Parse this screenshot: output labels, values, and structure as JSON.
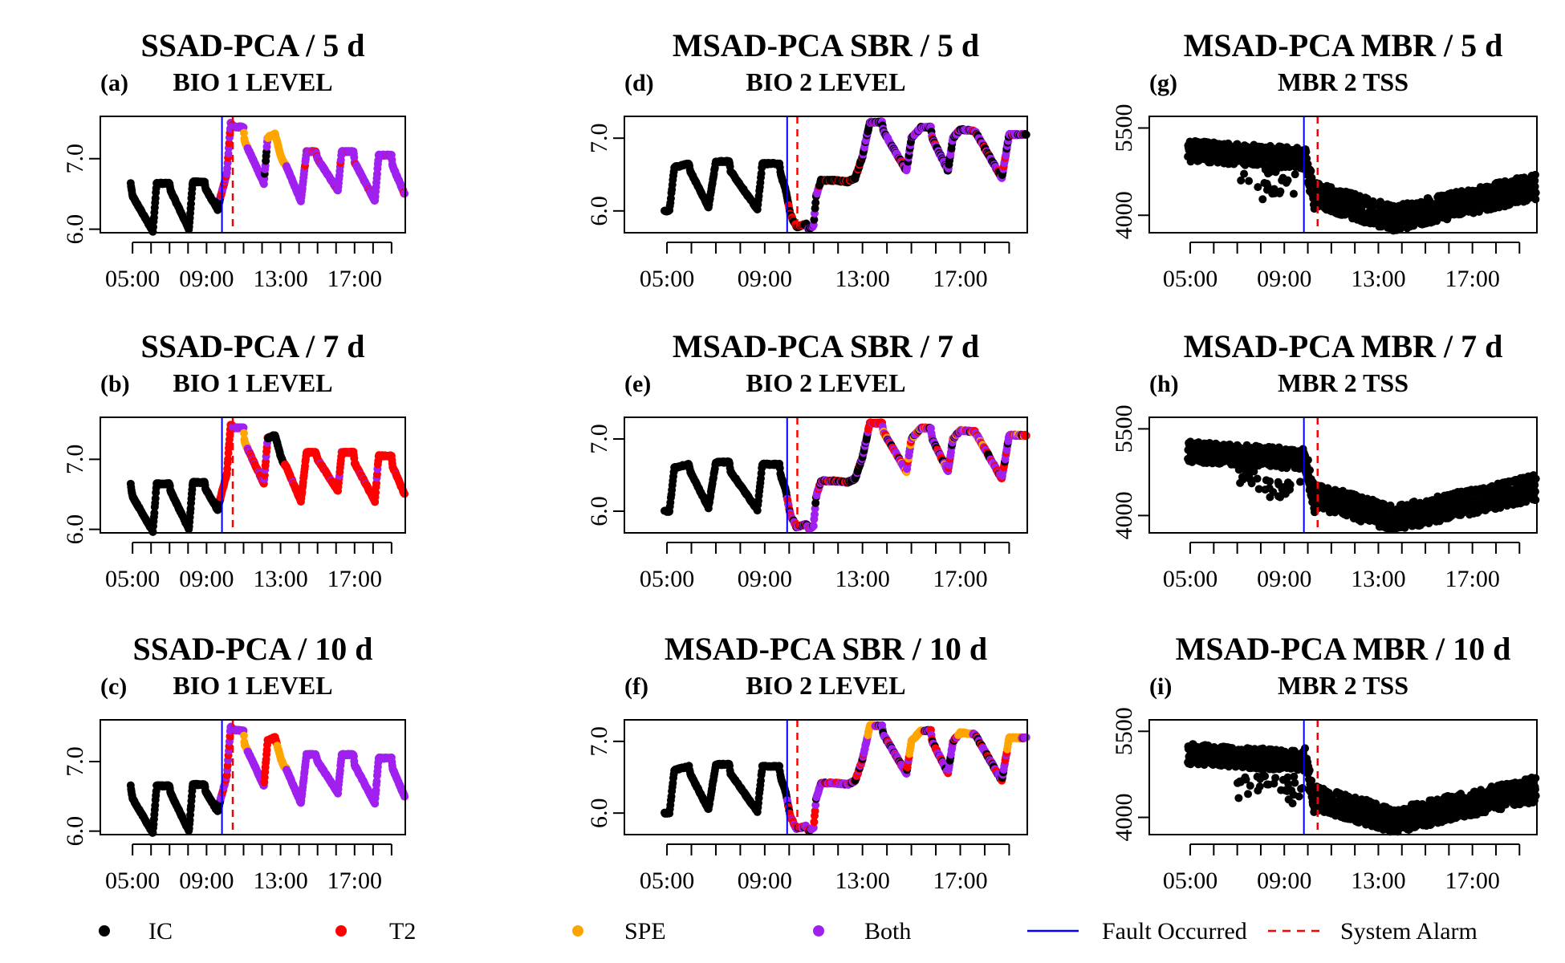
{
  "colors": {
    "IC": "#000000",
    "T2": "#ff0000",
    "SPE": "#ffa500",
    "Both": "#a020f0",
    "fault_line": "#0000ff",
    "alarm_line": "#ff0000"
  },
  "x_axis": {
    "domain_hours": [
      4.0,
      19.0
    ],
    "ticks": [
      "05:00",
      "06:00",
      "07:00",
      "08:00",
      "09:00",
      "10:00",
      "11:00",
      "12:00",
      "13:00",
      "14:00",
      "15:00",
      "16:00",
      "17:00",
      "18:00",
      "19:00"
    ],
    "tick_labels": [
      "05:00",
      "09:00",
      "13:00",
      "17:00"
    ]
  },
  "legend": {
    "items": [
      {
        "key": "IC",
        "label": "IC",
        "type": "point"
      },
      {
        "key": "T2",
        "label": "T2",
        "type": "point"
      },
      {
        "key": "SPE",
        "label": "SPE",
        "type": "point"
      },
      {
        "key": "Both",
        "label": "Both",
        "type": "point"
      },
      {
        "key": "fault_line",
        "label": "Fault Occurred",
        "type": "solid"
      },
      {
        "key": "alarm_line",
        "label": "System Alarm",
        "type": "dashed"
      }
    ]
  },
  "chart_data": [
    {
      "id": "a",
      "type": "scatter",
      "title": "SSAD-PCA / 5 d",
      "letter": "(a)",
      "variable": "BIO 1 LEVEL",
      "ylim": [
        5.95,
        7.6
      ],
      "yticks": [
        "6.0",
        "7.0"
      ],
      "fault_time": "09:50",
      "alarm_time": "10:25",
      "profile": "bio1",
      "pattern": "a"
    },
    {
      "id": "b",
      "type": "scatter",
      "title": "SSAD-PCA / 7 d",
      "letter": "(b)",
      "variable": "BIO 1 LEVEL",
      "ylim": [
        5.95,
        7.6
      ],
      "yticks": [
        "6.0",
        "7.0"
      ],
      "fault_time": "09:50",
      "alarm_time": "10:25",
      "profile": "bio1",
      "pattern": "b"
    },
    {
      "id": "c",
      "type": "scatter",
      "title": "SSAD-PCA / 10 d",
      "letter": "(c)",
      "variable": "BIO 1 LEVEL",
      "ylim": [
        5.95,
        7.6
      ],
      "yticks": [
        "6.0",
        "7.0"
      ],
      "fault_time": "09:50",
      "alarm_time": "10:25",
      "profile": "bio1",
      "pattern": "c"
    },
    {
      "id": "d",
      "type": "scatter",
      "title": "MSAD-PCA SBR / 5 d",
      "letter": "(d)",
      "variable": "BIO 2 LEVEL",
      "ylim": [
        5.7,
        7.3
      ],
      "yticks": [
        "6.0",
        "7.0"
      ],
      "fault_time": "09:55",
      "alarm_time": "10:20",
      "profile": "bio2",
      "pattern": "d"
    },
    {
      "id": "e",
      "type": "scatter",
      "title": "MSAD-PCA SBR / 7 d",
      "letter": "(e)",
      "variable": "BIO 2 LEVEL",
      "ylim": [
        5.7,
        7.3
      ],
      "yticks": [
        "6.0",
        "7.0"
      ],
      "fault_time": "09:55",
      "alarm_time": "10:20",
      "profile": "bio2",
      "pattern": "e"
    },
    {
      "id": "f",
      "type": "scatter",
      "title": "MSAD-PCA SBR / 10 d",
      "letter": "(f)",
      "variable": "BIO 2 LEVEL",
      "ylim": [
        5.7,
        7.3
      ],
      "yticks": [
        "6.0",
        "7.0"
      ],
      "fault_time": "09:55",
      "alarm_time": "10:20",
      "profile": "bio2",
      "pattern": "f"
    },
    {
      "id": "g",
      "type": "scatter",
      "title": "MSAD-PCA MBR / 5 d",
      "letter": "(g)",
      "variable": "MBR 2 TSS",
      "ylim": [
        3700,
        5700
      ],
      "yticks": [
        "4000",
        "5500"
      ],
      "fault_time": "09:50",
      "alarm_time": "10:25",
      "profile": "tss",
      "pattern": "tss"
    },
    {
      "id": "h",
      "type": "scatter",
      "title": "MSAD-PCA MBR / 7 d",
      "letter": "(h)",
      "variable": "MBR 2 TSS",
      "ylim": [
        3700,
        5700
      ],
      "yticks": [
        "4000",
        "5500"
      ],
      "fault_time": "09:50",
      "alarm_time": "10:25",
      "profile": "tss",
      "pattern": "tss"
    },
    {
      "id": "i",
      "type": "scatter",
      "title": "MSAD-PCA MBR / 10 d",
      "letter": "(i)",
      "variable": "MBR 2 TSS",
      "ylim": [
        3700,
        5700
      ],
      "yticks": [
        "4000",
        "5500"
      ],
      "fault_time": "09:50",
      "alarm_time": "10:25",
      "profile": "tss",
      "pattern": "tss"
    }
  ]
}
